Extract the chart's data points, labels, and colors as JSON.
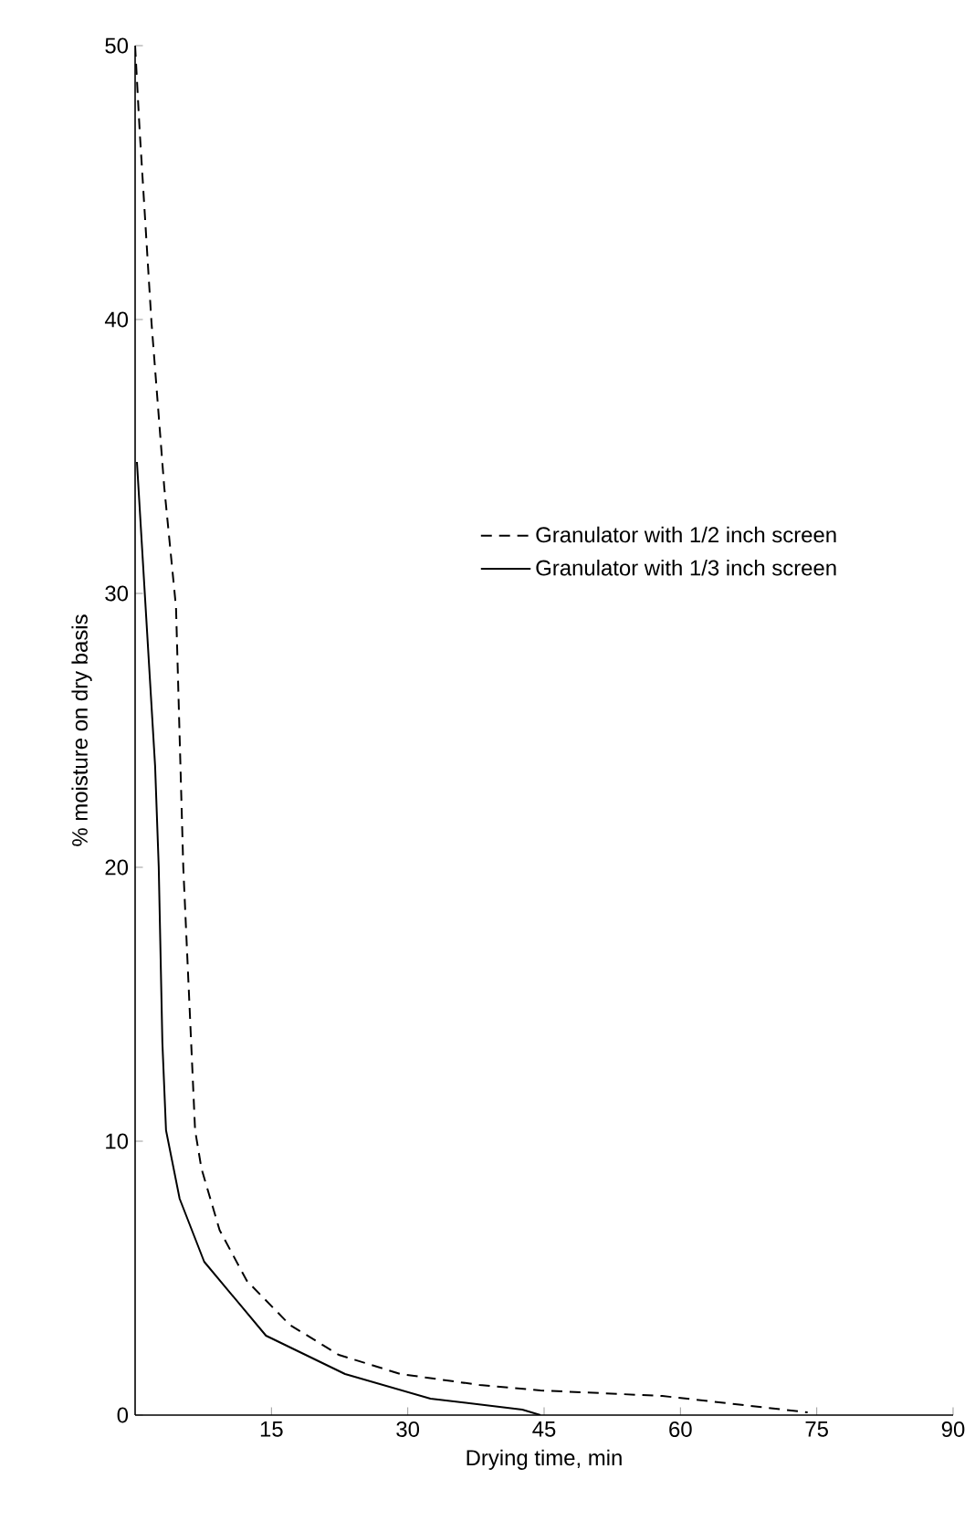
{
  "chart_data": {
    "type": "line",
    "xlabel": "Drying time, min",
    "ylabel": "% moisture on dry basis",
    "xlim": [
      0,
      90
    ],
    "ylim": [
      0,
      50
    ],
    "xticks": [
      15,
      30,
      45,
      60,
      75,
      90
    ],
    "yticks": [
      0,
      10,
      20,
      30,
      40,
      50
    ],
    "legend": "right",
    "series": [
      {
        "name": "Granulator with 1/2 inch screen",
        "color": "#000000",
        "line_style": "dashed",
        "x": [
          0,
          0.5,
          1.8,
          3.2,
          4.5,
          5.3,
          6.6,
          7.3,
          9.3,
          12.3,
          17,
          22.4,
          29.2,
          37.9,
          44.6,
          58,
          66,
          74
        ],
        "values": [
          50,
          46.9,
          39.9,
          33.9,
          29.5,
          20,
          10.4,
          9,
          6.75,
          4.9,
          3.3,
          2.2,
          1.5,
          1.1,
          0.9,
          0.7,
          0.4,
          0.1
        ]
      },
      {
        "name": "Granulator with 1/3 inch screen",
        "color": "#000000",
        "line_style": "solid",
        "x": [
          0.2,
          2.2,
          2.6,
          3.0,
          3.4,
          4.9,
          7.6,
          14.4,
          23.1,
          32.5,
          42.6,
          44.6
        ],
        "values": [
          34.8,
          23.7,
          20,
          13.6,
          10.4,
          7.9,
          5.6,
          2.9,
          1.5,
          0.6,
          0.2,
          0
        ]
      }
    ]
  }
}
